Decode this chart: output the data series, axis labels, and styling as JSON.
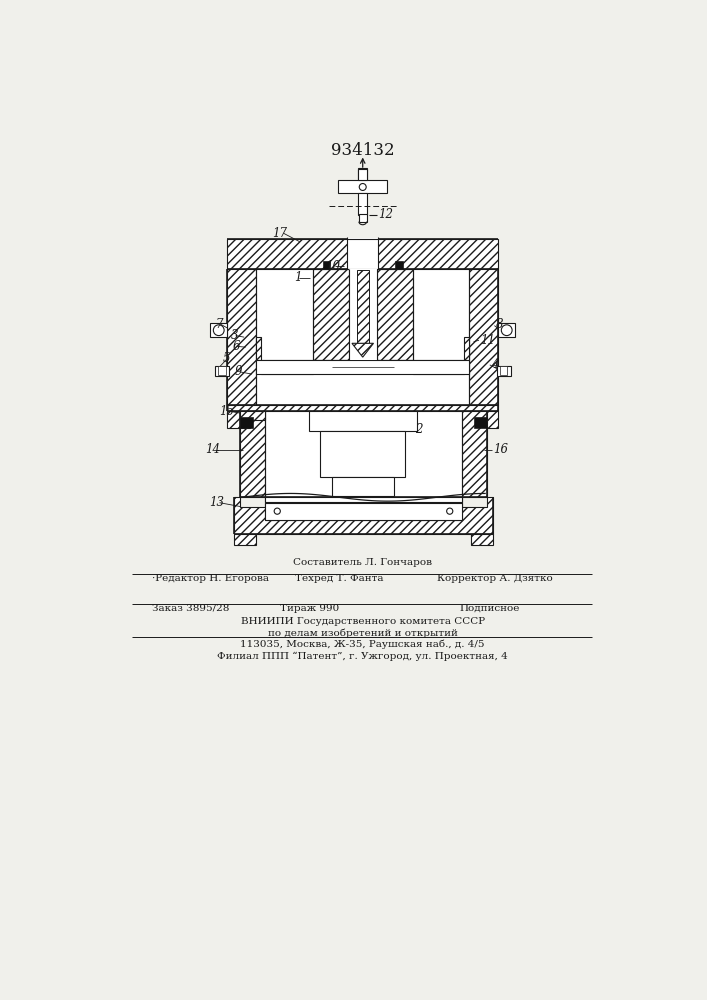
{
  "title": "934132",
  "bg": "#f0f0eb",
  "lc": "#1a1a1a",
  "white": "#ffffff",
  "black": "#111111",
  "hatch": "////",
  "label_fs": 8.5,
  "footer": {
    "line0": "Составитель Л. Гончаров",
    "line1_a": "·Редактор Н. Егорова",
    "line1_b": "Техред Т. Фанта",
    "line1_c": "Корректор А. Дзятко",
    "line2_a": "Заказ 3895/28",
    "line2_b": "Тираж 990",
    "line2_c": "Подписное",
    "line3": "ВНИИПИ Государственного комитета СССР",
    "line4": "по делам изобретений и открытий",
    "line5": "113035, Москва, Ж-35, Раушская наб., д. 4/5",
    "line6": "Филиал ППП “Патент”, г. Ужгород, ул. Проектная, 4"
  }
}
